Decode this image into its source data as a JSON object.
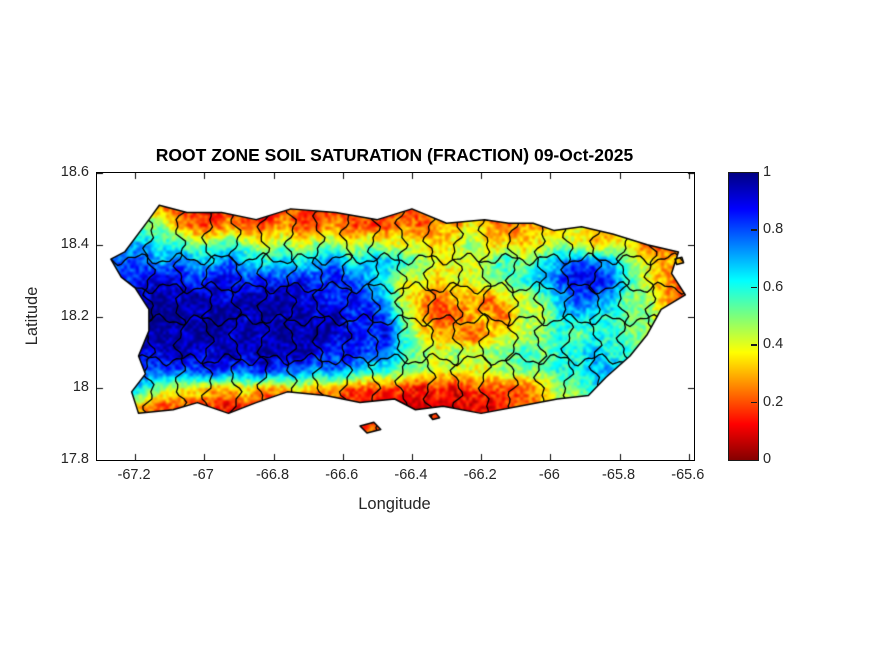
{
  "figure": {
    "title": "ROOT ZONE SOIL SATURATION (FRACTION) 09-Oct-2025",
    "xlabel": "Longitude",
    "ylabel": "Latitude",
    "background": "#ffffff",
    "text_color": "#262626",
    "axis_color": "#000000"
  },
  "chart_data": {
    "type": "heatmap",
    "title": "ROOT ZONE SOIL SATURATION (FRACTION) 09-Oct-2025",
    "xlabel": "Longitude",
    "ylabel": "Latitude",
    "xlim": [
      -67.31,
      -65.585
    ],
    "ylim": [
      17.8,
      18.6
    ],
    "x_ticks": [
      -67.2,
      -67,
      -66.8,
      -66.6,
      -66.4,
      -66.2,
      -66,
      -65.8,
      -65.6
    ],
    "x_tick_labels": [
      "-67.2",
      "-67",
      "-66.8",
      "-66.6",
      "-66.4",
      "-66.2",
      "-66",
      "-65.8",
      "-65.6"
    ],
    "y_ticks": [
      18.6,
      18.4,
      18.2,
      18,
      17.8
    ],
    "y_tick_labels": [
      "18.6",
      "18.4",
      "18.2",
      "18",
      "17.8"
    ],
    "grid_lines": false,
    "colorbar": {
      "min": 0,
      "max": 1,
      "ticks": [
        1,
        0.8,
        0.6,
        0.4,
        0.2,
        0
      ],
      "tick_labels": [
        "1",
        "0.8",
        "0.6",
        "0.4",
        "0.2",
        "0"
      ],
      "colormap": "jet-reversed (1=dark blue top, 0=dark red bottom)",
      "gradient_stops_top_to_bottom": [
        {
          "t": 0,
          "color": "#000084"
        },
        {
          "t": 0.125,
          "color": "#0000ff"
        },
        {
          "t": 0.375,
          "color": "#00ffff"
        },
        {
          "t": 0.5,
          "color": "#7dff7a"
        },
        {
          "t": 0.625,
          "color": "#ffff00"
        },
        {
          "t": 0.875,
          "color": "#ff0000"
        },
        {
          "t": 1,
          "color": "#840000"
        }
      ]
    },
    "grid": {
      "comment": "saturation fraction x10, rows north(18.50) to south(17.90), cols west(-67.275) to east(-65.625)",
      "lon_start": -67.275,
      "lon_step": 0.05,
      "lat_start": 18.5,
      "lat_step": -0.05,
      "value_scale": 0.1,
      "values": [
        [
          5,
          5,
          4,
          3,
          2,
          2,
          1,
          2,
          2,
          1,
          2,
          2,
          1,
          2,
          2,
          2,
          1,
          2,
          2,
          2,
          1,
          2,
          2,
          2,
          2,
          2,
          3,
          3,
          2,
          3,
          3,
          3,
          3,
          3
        ],
        [
          6,
          6,
          5,
          5,
          3,
          2,
          2,
          3,
          2,
          2,
          3,
          2,
          2,
          3,
          2,
          2,
          2,
          3,
          2,
          3,
          3,
          4,
          3,
          2,
          3,
          3,
          3,
          4,
          3,
          2,
          3,
          4,
          3,
          3
        ],
        [
          7,
          7,
          7,
          6,
          6,
          5,
          5,
          6,
          5,
          4,
          5,
          4,
          5,
          5,
          4,
          5,
          4,
          4,
          4,
          3,
          4,
          5,
          3,
          4,
          3,
          4,
          5,
          4,
          3,
          4,
          4,
          2,
          2,
          3
        ],
        [
          8,
          8,
          8,
          7,
          8,
          7,
          7,
          8,
          7,
          6,
          7,
          6,
          7,
          8,
          6,
          7,
          7,
          6,
          5,
          4,
          4,
          4,
          5,
          6,
          5,
          6,
          7,
          8,
          8,
          7,
          5,
          4,
          3,
          3
        ],
        [
          9,
          8,
          9,
          9,
          9,
          8,
          9,
          9,
          8,
          9,
          8,
          9,
          8,
          9,
          8,
          7,
          6,
          4,
          4,
          3,
          4,
          4,
          5,
          5,
          6,
          7,
          8,
          9,
          9,
          8,
          6,
          4,
          3,
          2
        ],
        [
          9,
          10,
          9,
          10,
          9,
          10,
          9,
          9,
          10,
          9,
          10,
          9,
          9,
          8,
          9,
          8,
          7,
          4,
          3,
          2,
          3,
          3,
          2,
          4,
          4,
          5,
          7,
          8,
          8,
          7,
          5,
          5,
          3,
          2
        ],
        [
          8,
          9,
          10,
          10,
          10,
          9,
          10,
          10,
          9,
          10,
          9,
          10,
          9,
          10,
          8,
          9,
          8,
          5,
          3,
          2,
          2,
          3,
          3,
          2,
          5,
          4,
          6,
          7,
          6,
          6,
          5,
          5,
          4,
          3
        ],
        [
          7,
          9,
          9,
          10,
          9,
          10,
          10,
          9,
          10,
          9,
          10,
          9,
          10,
          9,
          9,
          8,
          9,
          6,
          4,
          3,
          3,
          2,
          3,
          4,
          4,
          5,
          6,
          5,
          6,
          6,
          5,
          5,
          5,
          5
        ],
        [
          6,
          8,
          9,
          9,
          10,
          9,
          9,
          10,
          9,
          10,
          9,
          10,
          9,
          8,
          9,
          8,
          8,
          6,
          5,
          4,
          5,
          4,
          5,
          5,
          6,
          5,
          6,
          6,
          7,
          6,
          6,
          5,
          5,
          5
        ],
        [
          5,
          7,
          8,
          8,
          8,
          8,
          9,
          8,
          8,
          9,
          8,
          8,
          7,
          8,
          7,
          6,
          6,
          5,
          5,
          4,
          4,
          4,
          4,
          5,
          5,
          5,
          6,
          6,
          7,
          7,
          6,
          6,
          6,
          6
        ],
        [
          3,
          8,
          6,
          5,
          4,
          4,
          3,
          3,
          4,
          3,
          3,
          4,
          3,
          3,
          2,
          2,
          2,
          2,
          1,
          2,
          1,
          2,
          2,
          2,
          2,
          3,
          5,
          5,
          6,
          6,
          5,
          5,
          5,
          5
        ],
        [
          2,
          4,
          3,
          2,
          2,
          2,
          2,
          1,
          2,
          1,
          1,
          2,
          1,
          2,
          1,
          1,
          1,
          1,
          1,
          1,
          1,
          1,
          1,
          2,
          2,
          3,
          4,
          5,
          5,
          4,
          4,
          4,
          4,
          4
        ],
        [
          2,
          2,
          2,
          2,
          1,
          2,
          2,
          2,
          2,
          1,
          2,
          2,
          2,
          2,
          1,
          2,
          2,
          2,
          2,
          2,
          2,
          2,
          2,
          2,
          3,
          3,
          3,
          4,
          4,
          3,
          3,
          3,
          3,
          3
        ]
      ]
    },
    "island_outline": [
      [
        -67.27,
        18.36
      ],
      [
        -67.23,
        18.38
      ],
      [
        -67.16,
        18.47
      ],
      [
        -67.13,
        18.51
      ],
      [
        -67.05,
        18.49
      ],
      [
        -66.95,
        18.49
      ],
      [
        -66.85,
        18.47
      ],
      [
        -66.75,
        18.5
      ],
      [
        -66.62,
        18.49
      ],
      [
        -66.5,
        18.47
      ],
      [
        -66.4,
        18.5
      ],
      [
        -66.3,
        18.46
      ],
      [
        -66.19,
        18.47
      ],
      [
        -66.12,
        18.46
      ],
      [
        -66.05,
        18.46
      ],
      [
        -65.99,
        18.44
      ],
      [
        -65.91,
        18.45
      ],
      [
        -65.82,
        18.43
      ],
      [
        -65.72,
        18.4
      ],
      [
        -65.63,
        18.38
      ],
      [
        -65.65,
        18.32
      ],
      [
        -65.61,
        18.26
      ],
      [
        -65.68,
        18.22
      ],
      [
        -65.72,
        18.15
      ],
      [
        -65.77,
        18.09
      ],
      [
        -65.84,
        18.03
      ],
      [
        -65.89,
        17.98
      ],
      [
        -65.98,
        17.97
      ],
      [
        -66.09,
        17.95
      ],
      [
        -66.2,
        17.93
      ],
      [
        -66.31,
        17.95
      ],
      [
        -66.39,
        17.94
      ],
      [
        -66.45,
        17.97
      ],
      [
        -66.55,
        17.96
      ],
      [
        -66.65,
        17.98
      ],
      [
        -66.76,
        17.99
      ],
      [
        -66.85,
        17.96
      ],
      [
        -66.93,
        17.93
      ],
      [
        -67.02,
        17.96
      ],
      [
        -67.09,
        17.94
      ],
      [
        -67.19,
        17.93
      ],
      [
        -67.21,
        17.99
      ],
      [
        -67.17,
        18.04
      ],
      [
        -67.19,
        18.09
      ],
      [
        -67.16,
        18.16
      ],
      [
        -67.16,
        18.22
      ],
      [
        -67.2,
        18.28
      ],
      [
        -67.24,
        18.31
      ]
    ],
    "islets": [
      [
        [
          -66.55,
          17.895
        ],
        [
          -66.51,
          17.905
        ],
        [
          -66.49,
          17.885
        ],
        [
          -66.53,
          17.875
        ]
      ],
      [
        [
          -65.64,
          18.36
        ],
        [
          -65.62,
          18.365
        ],
        [
          -65.615,
          18.35
        ],
        [
          -65.635,
          18.345
        ]
      ],
      [
        [
          -66.35,
          17.925
        ],
        [
          -66.33,
          17.93
        ],
        [
          -66.32,
          17.918
        ],
        [
          -66.34,
          17.913
        ]
      ]
    ],
    "boundaries": {
      "vertical_lons": [
        -67.16,
        -67.07,
        -66.99,
        -66.91,
        -66.83,
        -66.75,
        -66.67,
        -66.59,
        -66.51,
        -66.43,
        -66.35,
        -66.27,
        -66.19,
        -66.11,
        -66.03,
        -65.95,
        -65.87,
        -65.79,
        -65.71
      ],
      "horizontal_lats": [
        18.36,
        18.28,
        18.19,
        18.08
      ]
    }
  }
}
